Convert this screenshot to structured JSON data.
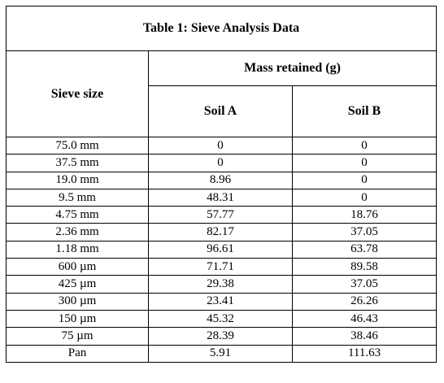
{
  "table": {
    "title": "Table 1: Sieve Analysis Data",
    "header_sieve": "Sieve size",
    "header_mass": "Mass retained (g)",
    "header_soil_a": "Soil A",
    "header_soil_b": "Soil B",
    "rows": [
      {
        "size": "75.0 mm",
        "a": "0",
        "b": "0"
      },
      {
        "size": "37.5 mm",
        "a": "0",
        "b": "0"
      },
      {
        "size": "19.0 mm",
        "a": "8.96",
        "b": "0"
      },
      {
        "size": "9.5 mm",
        "a": "48.31",
        "b": "0"
      },
      {
        "size": "4.75 mm",
        "a": "57.77",
        "b": "18.76"
      },
      {
        "size": "2.36 mm",
        "a": "82.17",
        "b": "37.05"
      },
      {
        "size": "1.18 mm",
        "a": "96.61",
        "b": "63.78"
      },
      {
        "size": "600 µm",
        "a": "71.71",
        "b": "89.58"
      },
      {
        "size": "425 µm",
        "a": "29.38",
        "b": "37.05"
      },
      {
        "size": "300 µm",
        "a": "23.41",
        "b": "26.26"
      },
      {
        "size": "150 µm",
        "a": "45.32",
        "b": "46.43"
      },
      {
        "size": "75 µm",
        "a": "28.39",
        "b": "38.46"
      },
      {
        "size": "Pan",
        "a": "5.91",
        "b": "111.63"
      }
    ]
  }
}
